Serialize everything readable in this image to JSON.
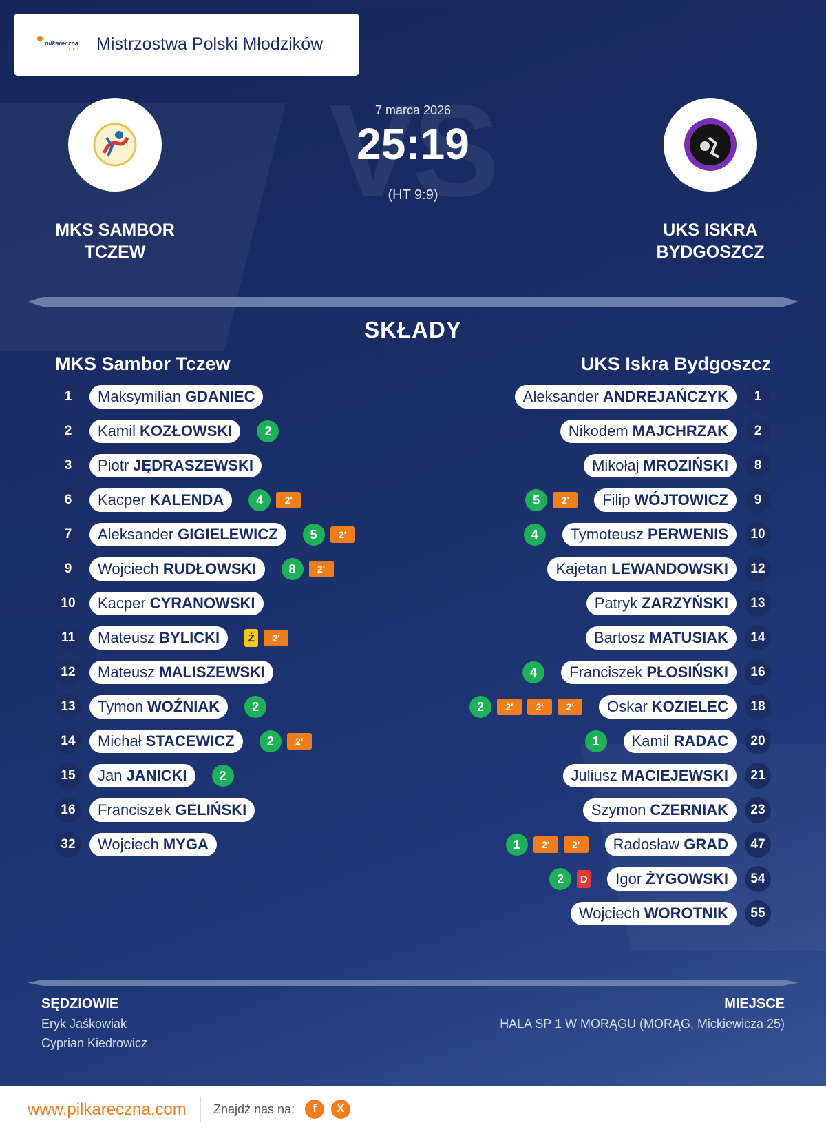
{
  "competition": {
    "title": "Mistrzostwa Polski Młodzików",
    "logo_text": "pilkareczna",
    "logo_sub": ".com"
  },
  "match": {
    "date": "7 marca 2026",
    "score": "25:19",
    "halftime": "(HT 9:9)",
    "watermark": "VS"
  },
  "home": {
    "name_line1": "MKS SAMBOR",
    "name_line2": "TCZEW",
    "lineup_title": "MKS Sambor Tczew",
    "players": [
      {
        "num": "1",
        "first": "Maksymilian",
        "last": "GDANIEC",
        "events": []
      },
      {
        "num": "2",
        "first": "Kamil",
        "last": "KOZŁOWSKI",
        "events": [
          {
            "type": "goals",
            "text": "2"
          }
        ]
      },
      {
        "num": "3",
        "first": "Piotr",
        "last": "JĘDRASZEWSKI",
        "events": []
      },
      {
        "num": "6",
        "first": "Kacper",
        "last": "KALENDA",
        "events": [
          {
            "type": "goals",
            "text": "4"
          },
          {
            "type": "susp",
            "text": "2'"
          }
        ]
      },
      {
        "num": "7",
        "first": "Aleksander",
        "last": "GIGIELEWICZ",
        "events": [
          {
            "type": "goals",
            "text": "5"
          },
          {
            "type": "susp",
            "text": "2'"
          }
        ]
      },
      {
        "num": "9",
        "first": "Wojciech",
        "last": "RUDŁOWSKI",
        "events": [
          {
            "type": "goals",
            "text": "8"
          },
          {
            "type": "susp",
            "text": "2'"
          }
        ]
      },
      {
        "num": "10",
        "first": "Kacper",
        "last": "CYRANOWSKI",
        "events": []
      },
      {
        "num": "11",
        "first": "Mateusz",
        "last": "BYLICKI",
        "events": [
          {
            "type": "yellow",
            "text": "Ż"
          },
          {
            "type": "susp",
            "text": "2'"
          }
        ]
      },
      {
        "num": "12",
        "first": "Mateusz",
        "last": "MALISZEWSKI",
        "events": []
      },
      {
        "num": "13",
        "first": "Tymon",
        "last": "WOŹNIAK",
        "events": [
          {
            "type": "goals",
            "text": "2"
          }
        ]
      },
      {
        "num": "14",
        "first": "Michał",
        "last": "STACEWICZ",
        "events": [
          {
            "type": "goals",
            "text": "2"
          },
          {
            "type": "susp",
            "text": "2'"
          }
        ]
      },
      {
        "num": "15",
        "first": "Jan",
        "last": "JANICKI",
        "events": [
          {
            "type": "goals",
            "text": "2"
          }
        ]
      },
      {
        "num": "16",
        "first": "Franciszek",
        "last": "GELIŃSKI",
        "events": []
      },
      {
        "num": "32",
        "first": "Wojciech",
        "last": "MYGA",
        "events": []
      }
    ]
  },
  "away": {
    "name_line1": "UKS ISKRA",
    "name_line2": "BYDGOSZCZ",
    "lineup_title": "UKS Iskra Bydgoszcz",
    "players": [
      {
        "num": "1",
        "first": "Aleksander",
        "last": "ANDREJAŃCZYK",
        "events": []
      },
      {
        "num": "2",
        "first": "Nikodem",
        "last": "MAJCHRZAK",
        "events": []
      },
      {
        "num": "8",
        "first": "Mikołaj",
        "last": "MROZIŃSKI",
        "events": []
      },
      {
        "num": "9",
        "first": "Filip",
        "last": "WÓJTOWICZ",
        "events": [
          {
            "type": "goals",
            "text": "5"
          },
          {
            "type": "susp",
            "text": "2'"
          }
        ]
      },
      {
        "num": "10",
        "first": "Tymoteusz",
        "last": "PERWENIS",
        "events": [
          {
            "type": "goals",
            "text": "4"
          }
        ]
      },
      {
        "num": "12",
        "first": "Kajetan",
        "last": "LEWANDOWSKI",
        "events": []
      },
      {
        "num": "13",
        "first": "Patryk",
        "last": "ZARZYŃSKI",
        "events": []
      },
      {
        "num": "14",
        "first": "Bartosz",
        "last": "MATUSIAK",
        "events": []
      },
      {
        "num": "16",
        "first": "Franciszek",
        "last": "PŁOSIŃSKI",
        "events": [
          {
            "type": "goals",
            "text": "4"
          }
        ]
      },
      {
        "num": "18",
        "first": "Oskar",
        "last": "KOZIELEC",
        "events": [
          {
            "type": "goals",
            "text": "2"
          },
          {
            "type": "susp",
            "text": "2'"
          },
          {
            "type": "susp",
            "text": "2'"
          },
          {
            "type": "susp",
            "text": "2'"
          }
        ]
      },
      {
        "num": "20",
        "first": "Kamil",
        "last": "RADAC",
        "events": [
          {
            "type": "goals",
            "text": "1"
          }
        ]
      },
      {
        "num": "21",
        "first": "Juliusz",
        "last": "MACIEJEWSKI",
        "events": []
      },
      {
        "num": "23",
        "first": "Szymon",
        "last": "CZERNIAK",
        "events": []
      },
      {
        "num": "47",
        "first": "Radosław",
        "last": "GRAD",
        "events": [
          {
            "type": "goals",
            "text": "1"
          },
          {
            "type": "susp",
            "text": "2'"
          },
          {
            "type": "susp",
            "text": "2'"
          }
        ]
      },
      {
        "num": "54",
        "first": "Igor",
        "last": "ŻYGOWSKI",
        "events": [
          {
            "type": "goals",
            "text": "2"
          },
          {
            "type": "red",
            "text": "D"
          }
        ]
      },
      {
        "num": "55",
        "first": "Wojciech",
        "last": "WOROTNIK",
        "events": []
      }
    ]
  },
  "lineups_heading": "SKŁADY",
  "referees": {
    "heading": "SĘDZIOWIE",
    "names": [
      "Eryk Jaśkowiak",
      "Cyprian Kiedrowicz"
    ]
  },
  "venue": {
    "heading": "MIEJSCE",
    "text": "HALA SP 1 W MORĄGU (MORĄG, Mickiewicza 25)"
  },
  "footer": {
    "url": "www.pilkareczna.com",
    "find_us": "Znajdź nas na:",
    "facebook": "f",
    "x": "X"
  },
  "colors": {
    "orange": "#f07e1d",
    "green": "#1fb15a",
    "navy": "#1c2d64",
    "red": "#e53935",
    "yellow": "#f5c518"
  }
}
